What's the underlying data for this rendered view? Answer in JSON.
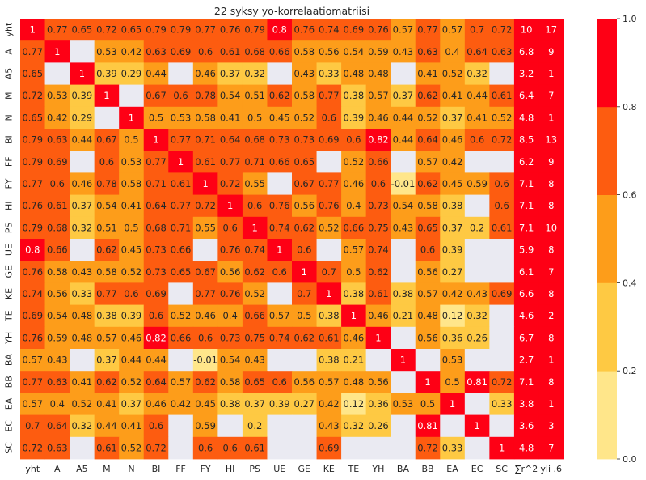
{
  "chart_data": {
    "type": "heatmap",
    "title": "22 syksy yo-korrelaatiomatriisi",
    "xlabel": "",
    "ylabel": "",
    "x_labels": [
      "yht",
      "A",
      "A5",
      "M",
      "N",
      "BI",
      "FF",
      "FY",
      "HI",
      "PS",
      "UE",
      "GE",
      "KE",
      "TE",
      "YH",
      "BA",
      "BB",
      "EA",
      "EC",
      "SC",
      "∑r^2",
      "yli .6"
    ],
    "y_labels": [
      "yht",
      "A",
      "A5",
      "M",
      "N",
      "BI",
      "FF",
      "FY",
      "HI",
      "PS",
      "UE",
      "GE",
      "KE",
      "TE",
      "YH",
      "BA",
      "BB",
      "EA",
      "EC",
      "SC"
    ],
    "values": [
      [
        1,
        0.77,
        0.65,
        0.72,
        0.65,
        0.79,
        0.79,
        0.77,
        0.76,
        0.79,
        0.8,
        0.76,
        0.74,
        0.69,
        0.76,
        0.57,
        0.77,
        0.57,
        0.7,
        0.72,
        10,
        17
      ],
      [
        0.77,
        1,
        null,
        0.53,
        0.42,
        0.63,
        0.69,
        0.6,
        0.61,
        0.68,
        0.66,
        0.58,
        0.56,
        0.54,
        0.59,
        0.43,
        0.63,
        0.4,
        0.64,
        0.63,
        6.8,
        9
      ],
      [
        0.65,
        null,
        1,
        0.39,
        0.29,
        0.44,
        null,
        0.46,
        0.37,
        0.32,
        null,
        0.43,
        0.33,
        0.48,
        0.48,
        null,
        0.41,
        0.52,
        0.32,
        null,
        3.2,
        1
      ],
      [
        0.72,
        0.53,
        0.39,
        1,
        null,
        0.67,
        0.6,
        0.78,
        0.54,
        0.51,
        0.62,
        0.58,
        0.77,
        0.38,
        0.57,
        0.37,
        0.62,
        0.41,
        0.44,
        0.61,
        6.4,
        7
      ],
      [
        0.65,
        0.42,
        0.29,
        null,
        1,
        0.5,
        0.53,
        0.58,
        0.41,
        0.5,
        0.45,
        0.52,
        0.6,
        0.39,
        0.46,
        0.44,
        0.52,
        0.37,
        0.41,
        0.52,
        4.8,
        1
      ],
      [
        0.79,
        0.63,
        0.44,
        0.67,
        0.5,
        1,
        0.77,
        0.71,
        0.64,
        0.68,
        0.73,
        0.73,
        0.69,
        0.6,
        0.82,
        0.44,
        0.64,
        0.46,
        0.6,
        0.72,
        8.5,
        13
      ],
      [
        0.79,
        0.69,
        null,
        0.6,
        0.53,
        0.77,
        1,
        0.61,
        0.77,
        0.71,
        0.66,
        0.65,
        null,
        0.52,
        0.66,
        null,
        0.57,
        0.42,
        null,
        null,
        6.2,
        9
      ],
      [
        0.77,
        0.6,
        0.46,
        0.78,
        0.58,
        0.71,
        0.61,
        1,
        0.72,
        0.55,
        null,
        0.67,
        0.77,
        0.46,
        0.6,
        -0.01,
        0.62,
        0.45,
        0.59,
        0.6,
        7.1,
        8
      ],
      [
        0.76,
        0.61,
        0.37,
        0.54,
        0.41,
        0.64,
        0.77,
        0.72,
        1,
        0.6,
        0.76,
        0.56,
        0.76,
        0.4,
        0.73,
        0.54,
        0.58,
        0.38,
        null,
        0.6,
        7.1,
        8
      ],
      [
        0.79,
        0.68,
        0.32,
        0.51,
        0.5,
        0.68,
        0.71,
        0.55,
        0.6,
        1,
        0.74,
        0.62,
        0.52,
        0.66,
        0.75,
        0.43,
        0.65,
        0.37,
        0.2,
        0.61,
        7.1,
        10
      ],
      [
        0.8,
        0.66,
        null,
        0.62,
        0.45,
        0.73,
        0.66,
        null,
        0.76,
        0.74,
        1,
        0.6,
        null,
        0.57,
        0.74,
        null,
        0.6,
        0.39,
        null,
        null,
        5.9,
        8
      ],
      [
        0.76,
        0.58,
        0.43,
        0.58,
        0.52,
        0.73,
        0.65,
        0.67,
        0.56,
        0.62,
        0.6,
        1,
        0.7,
        0.5,
        0.62,
        null,
        0.56,
        0.27,
        null,
        null,
        6.1,
        7
      ],
      [
        0.74,
        0.56,
        0.33,
        0.77,
        0.6,
        0.69,
        null,
        0.77,
        0.76,
        0.52,
        null,
        0.7,
        1,
        0.38,
        0.61,
        0.38,
        0.57,
        0.42,
        0.43,
        0.69,
        6.6,
        8
      ],
      [
        0.69,
        0.54,
        0.48,
        0.38,
        0.39,
        0.6,
        0.52,
        0.46,
        0.4,
        0.66,
        0.57,
        0.5,
        0.38,
        1,
        0.46,
        0.21,
        0.48,
        0.12,
        0.32,
        null,
        4.6,
        2
      ],
      [
        0.76,
        0.59,
        0.48,
        0.57,
        0.46,
        0.82,
        0.66,
        0.6,
        0.73,
        0.75,
        0.74,
        0.62,
        0.61,
        0.46,
        1,
        null,
        0.56,
        0.36,
        0.26,
        null,
        6.7,
        8
      ],
      [
        0.57,
        0.43,
        null,
        0.37,
        0.44,
        0.44,
        null,
        -0.01,
        0.54,
        0.43,
        null,
        null,
        0.38,
        0.21,
        null,
        1,
        null,
        0.53,
        null,
        null,
        2.7,
        1
      ],
      [
        0.77,
        0.63,
        0.41,
        0.62,
        0.52,
        0.64,
        0.57,
        0.62,
        0.58,
        0.65,
        0.6,
        0.56,
        0.57,
        0.48,
        0.56,
        null,
        1,
        0.5,
        0.81,
        0.72,
        7.1,
        8
      ],
      [
        0.57,
        0.4,
        0.52,
        0.41,
        0.37,
        0.46,
        0.42,
        0.45,
        0.38,
        0.37,
        0.39,
        0.27,
        0.42,
        0.12,
        0.36,
        0.53,
        0.5,
        1,
        null,
        0.33,
        3.8,
        1
      ],
      [
        0.7,
        0.64,
        0.32,
        0.44,
        0.41,
        0.6,
        null,
        0.59,
        null,
        0.2,
        null,
        null,
        0.43,
        0.32,
        0.26,
        null,
        0.81,
        null,
        1,
        null,
        3.6,
        3
      ],
      [
        0.72,
        0.63,
        null,
        0.61,
        0.52,
        0.72,
        null,
        0.6,
        0.6,
        0.61,
        null,
        null,
        0.69,
        null,
        null,
        null,
        0.72,
        0.33,
        null,
        1,
        4.8,
        7
      ]
    ],
    "colorbar": {
      "range": [
        0,
        1
      ],
      "ticks": [
        "0.0",
        "0.2",
        "0.4",
        "0.6",
        "0.8",
        "1.0"
      ],
      "bins": [
        {
          "from": 0.0,
          "to": 0.2,
          "color": "#ffe68a"
        },
        {
          "from": 0.2,
          "to": 0.4,
          "color": "#fec943"
        },
        {
          "from": 0.4,
          "to": 0.6,
          "color": "#fd9d1a"
        },
        {
          "from": 0.6,
          "to": 0.8,
          "color": "#fd5c10"
        },
        {
          "from": 0.8,
          "to": 1.0,
          "color": "#fe0015"
        }
      ]
    },
    "missing_color": "#eaeaf2",
    "grid": false
  }
}
